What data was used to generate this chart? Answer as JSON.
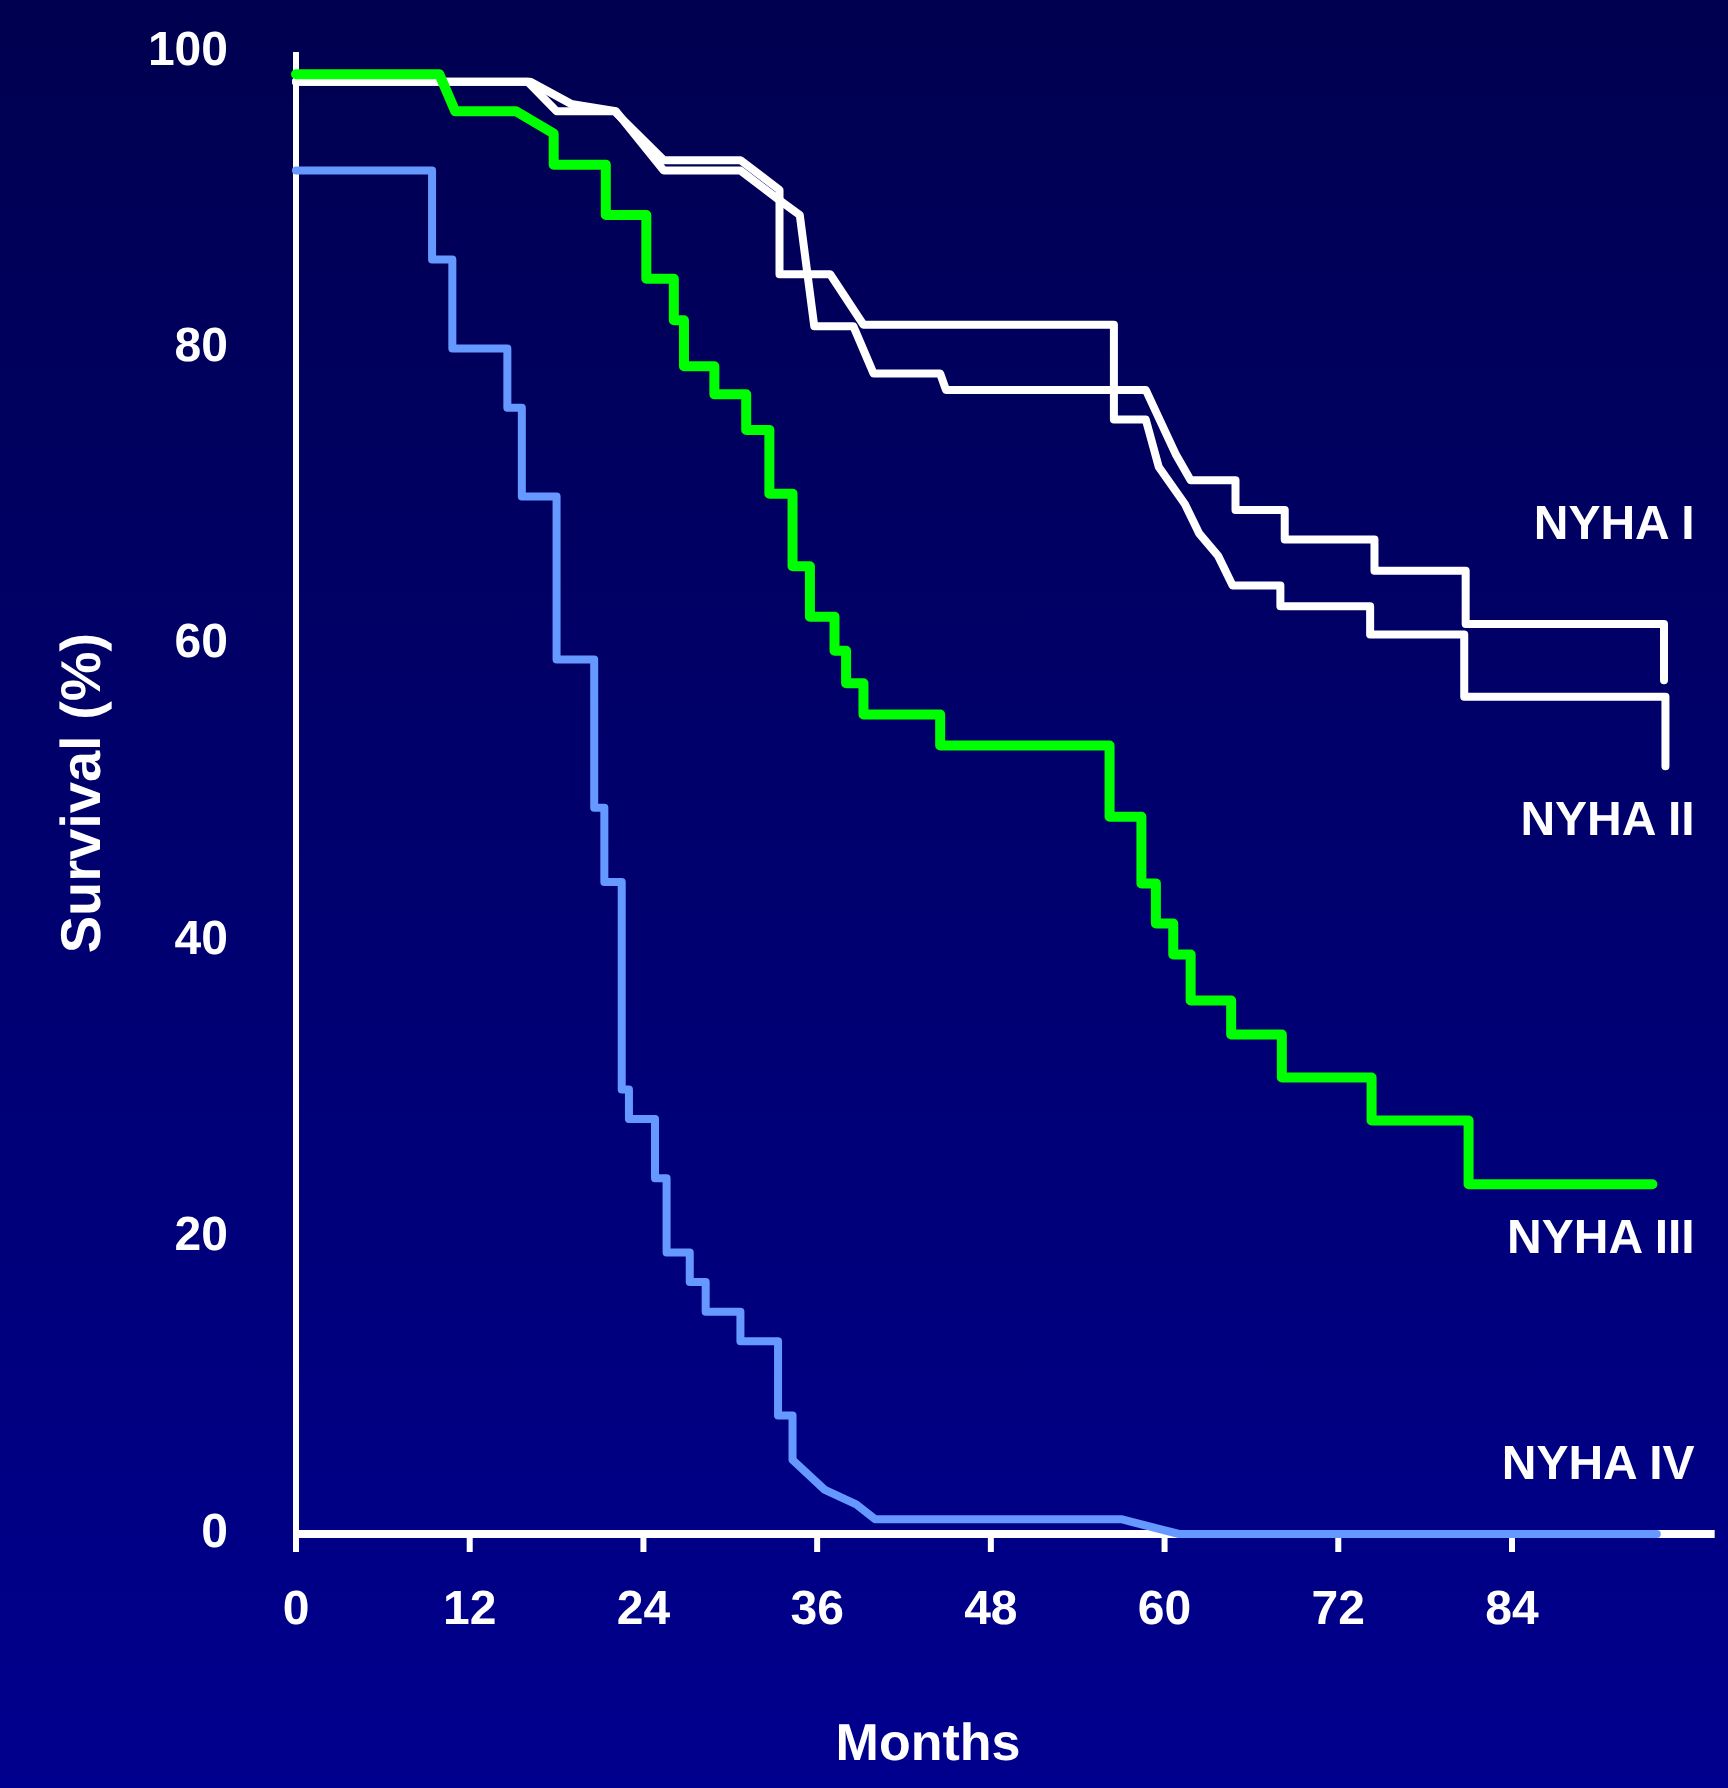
{
  "chart_data": {
    "type": "line",
    "xlabel": "Months",
    "ylabel": "Survival (%)",
    "xlim": [
      0,
      98
    ],
    "ylim": [
      0,
      100
    ],
    "xticks": [
      0,
      12,
      24,
      36,
      48,
      60,
      72,
      84
    ],
    "yticks": [
      0,
      20,
      40,
      60,
      80,
      100
    ],
    "grid": false,
    "marker": "none",
    "line_style": "solid",
    "series": [
      {
        "name": "NYHA I",
        "color": "#ffffff",
        "x": [
          0,
          16.2,
          19,
          22.1,
          25.4,
          30.7,
          33.4,
          34.8,
          35.8,
          38.5,
          39.9,
          44.5,
          44.9,
          58.7,
          60.8,
          61.8,
          64.9,
          64.9,
          68.3,
          68.3,
          74.5,
          74.5,
          80.8,
          80.8,
          94.5,
          94.5
        ],
        "values": [
          98,
          98,
          96.5,
          96,
          92,
          92,
          90,
          89,
          81.5,
          81.5,
          78.3,
          78.3,
          77.2,
          77.2,
          72.8,
          71.1,
          71.1,
          69.1,
          69.1,
          67.1,
          67.1,
          65,
          65,
          61.4,
          61.4,
          57.6
        ]
      },
      {
        "name": "NYHA II",
        "color": "#ffffff",
        "x": [
          0,
          16,
          18,
          22,
          25.4,
          30.7,
          33.4,
          33.4,
          36.9,
          39.2,
          56.5,
          56.5,
          58.7,
          59.6,
          61.4,
          62.4,
          63.7,
          64.7,
          68,
          68,
          74.2,
          74.2,
          80.7,
          80.7,
          94.6,
          94.6
        ],
        "values": [
          98,
          98,
          96,
          96,
          92.7,
          92.7,
          90.7,
          85,
          85,
          81.6,
          81.6,
          75.2,
          75.2,
          72,
          69.5,
          67.5,
          66,
          64,
          64,
          62.6,
          62.6,
          60.7,
          60.7,
          56.5,
          56.5,
          51.8
        ]
      },
      {
        "name": "NYHA III",
        "color": "#00ff00",
        "x": [
          0,
          9.9,
          11,
          15.2,
          17.8,
          17.8,
          21.4,
          21.4,
          24.2,
          24.2,
          26.1,
          26.1,
          26.8,
          26.8,
          28.9,
          28.9,
          31.1,
          31.1,
          32.7,
          32.7,
          34.3,
          34.3,
          35.5,
          35.5,
          37.2,
          37.2,
          38,
          38,
          39.2,
          39.2,
          44.5,
          44.5,
          56.2,
          56.2,
          58.4,
          58.4,
          59.4,
          59.4,
          60.6,
          60.6,
          61.8,
          61.8,
          64.6,
          64.6,
          68.1,
          68.1,
          74.3,
          74.3,
          81,
          81,
          93.7
        ],
        "values": [
          98.5,
          98.5,
          96,
          96,
          94.5,
          92.4,
          92.4,
          89,
          89,
          84.7,
          84.7,
          81.9,
          81.9,
          78.8,
          78.8,
          76.9,
          76.9,
          74.5,
          74.5,
          70.2,
          70.2,
          65.3,
          65.3,
          61.9,
          61.9,
          59.6,
          59.6,
          57.4,
          57.4,
          55.3,
          55.3,
          53.2,
          53.2,
          48.4,
          48.4,
          43.9,
          43.9,
          41.2,
          41.2,
          39.1,
          39.1,
          36,
          36,
          33.7,
          33.7,
          30.8,
          30.8,
          27.9,
          27.9,
          23.6,
          23.6
        ]
      },
      {
        "name": "NYHA IV",
        "color": "#6699ff",
        "x": [
          0,
          9.4,
          9.4,
          10.8,
          10.8,
          14.6,
          14.6,
          15.6,
          15.6,
          18,
          18,
          20.6,
          20.6,
          21.3,
          21.3,
          22.5,
          22.5,
          23,
          23,
          24.8,
          24.8,
          25.6,
          25.6,
          27.2,
          27.2,
          28.3,
          28.3,
          30.7,
          30.7,
          33.3,
          33.3,
          34.3,
          34.3,
          36.5,
          38.7,
          40,
          57,
          61,
          94
        ],
        "values": [
          92,
          92,
          86,
          86,
          80,
          80,
          76,
          76,
          70,
          70,
          59,
          59,
          49,
          49,
          44,
          44,
          30,
          30,
          28,
          28,
          24,
          24,
          19,
          19,
          17,
          17,
          15,
          15,
          13,
          13,
          8,
          8,
          5,
          3,
          2,
          1,
          1,
          0,
          0
        ]
      }
    ]
  }
}
